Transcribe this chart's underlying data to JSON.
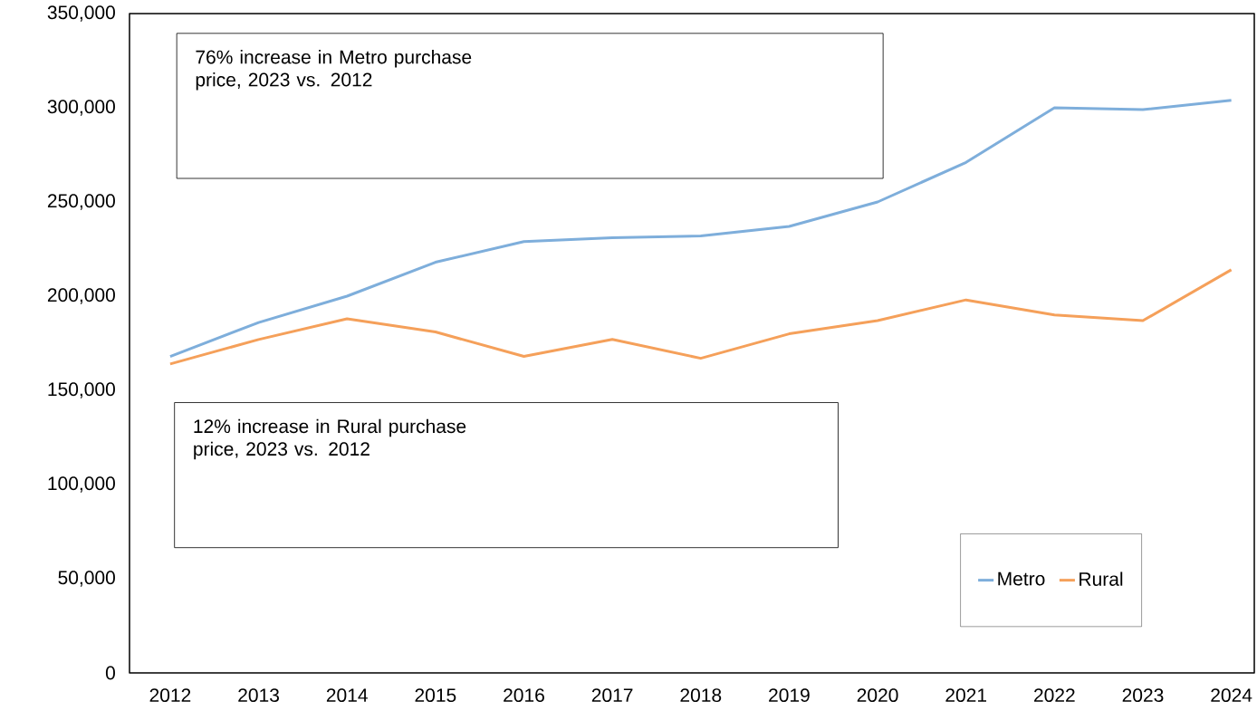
{
  "chart_data": {
    "type": "line",
    "categories": [
      "2012",
      "2013",
      "2014",
      "2015",
      "2016",
      "2017",
      "2018",
      "2019",
      "2020",
      "2021",
      "2022",
      "2023",
      "2024"
    ],
    "series": [
      {
        "name": "Metro",
        "color": "#7eaedb",
        "values": [
          168000,
          186000,
          200000,
          218000,
          229000,
          231000,
          232000,
          237000,
          250000,
          271000,
          300000,
          299000,
          304000
        ]
      },
      {
        "name": "Rural",
        "color": "#f5a05a",
        "values": [
          164000,
          177000,
          188000,
          181000,
          168000,
          177000,
          167000,
          180000,
          187000,
          198000,
          190000,
          187000,
          214000
        ]
      }
    ],
    "ylim": [
      0,
      350000
    ],
    "yticks": [
      0,
      {
        "value": 50000,
        "label": "50,000"
      },
      {
        "value": 100000,
        "label": "100,000"
      },
      {
        "value": 150000,
        "label": "150,000"
      },
      {
        "value": 200000,
        "label": "200,000"
      },
      {
        "value": 250000,
        "label": "250,000"
      },
      {
        "value": 300000,
        "label": "300,000"
      },
      {
        "value": 350000,
        "label": "350,000"
      }
    ],
    "annotations": [
      "76% increase in Metro purchase price, 2023 vs. 2012",
      "12% increase in Rural purchase price, 2023 vs. 2012"
    ],
    "legend": "bottom right",
    "grid": false,
    "marker": "none",
    "line_style": "solid"
  }
}
